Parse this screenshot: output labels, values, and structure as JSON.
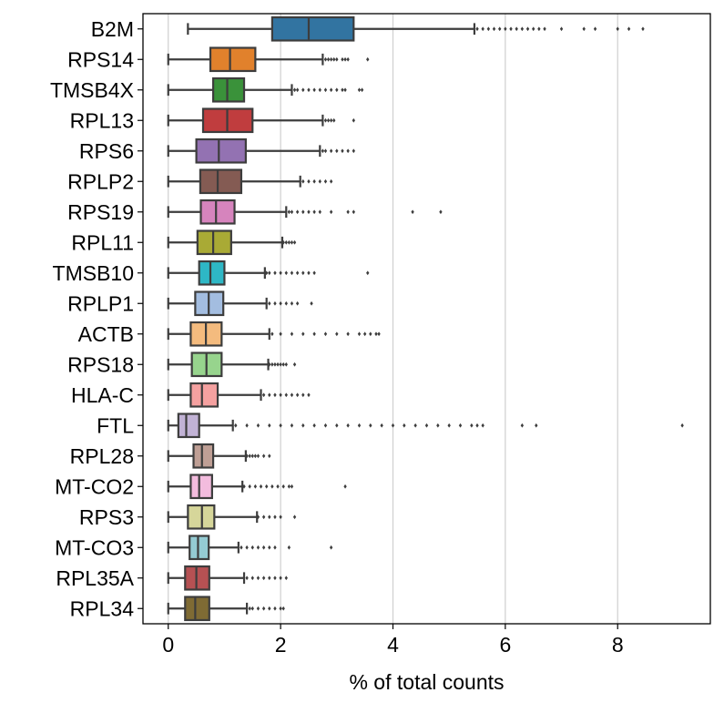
{
  "chart_data": {
    "type": "box",
    "title": "",
    "xlabel": "% of total counts",
    "ylabel": "",
    "xlim": [
      -0.45,
      9.65
    ],
    "xticks": [
      0,
      2,
      4,
      6,
      8
    ],
    "grid": "vertical",
    "orientation": "horizontal",
    "categories": [
      "B2M",
      "RPS14",
      "TMSB4X",
      "RPL13",
      "RPS6",
      "RPLP2",
      "RPS19",
      "RPL11",
      "TMSB10",
      "RPLP1",
      "ACTB",
      "RPS18",
      "HLA-C",
      "FTL",
      "RPL28",
      "MT-CO2",
      "RPS3",
      "MT-CO3",
      "RPL35A",
      "RPL34"
    ],
    "boxes": [
      {
        "name": "B2M",
        "color": "#3274a1",
        "whisker_low": 0.35,
        "q1": 1.85,
        "median": 2.5,
        "q3": 3.3,
        "whisker_high": 5.45,
        "outliers": [
          5.5,
          5.6,
          5.7,
          5.8,
          5.9,
          6.0,
          6.1,
          6.2,
          6.3,
          6.4,
          6.5,
          6.6,
          6.7,
          7.0,
          7.4,
          7.6,
          8.0,
          8.2,
          8.45
        ]
      },
      {
        "name": "RPS14",
        "color": "#e1812c",
        "whisker_low": 0.0,
        "q1": 0.75,
        "median": 1.1,
        "q3": 1.55,
        "whisker_high": 2.75,
        "outliers": [
          2.8,
          2.85,
          2.9,
          2.95,
          3.0,
          3.1,
          3.15,
          3.2,
          3.55
        ]
      },
      {
        "name": "TMSB4X",
        "color": "#3a923a",
        "whisker_low": 0.0,
        "q1": 0.8,
        "median": 1.05,
        "q3": 1.35,
        "whisker_high": 2.2,
        "outliers": [
          2.25,
          2.3,
          2.4,
          2.5,
          2.6,
          2.7,
          2.8,
          2.9,
          3.0,
          3.1,
          3.15,
          3.4,
          3.45
        ]
      },
      {
        "name": "RPL13",
        "color": "#c03d3e",
        "whisker_low": 0.0,
        "q1": 0.62,
        "median": 1.05,
        "q3": 1.5,
        "whisker_high": 2.75,
        "outliers": [
          2.8,
          2.85,
          2.9,
          2.95,
          3.3
        ]
      },
      {
        "name": "RPS6",
        "color": "#9372b2",
        "whisker_low": 0.0,
        "q1": 0.5,
        "median": 0.9,
        "q3": 1.38,
        "whisker_high": 2.7,
        "outliers": [
          2.75,
          2.8,
          2.9,
          3.0,
          3.1,
          3.2,
          3.3
        ]
      },
      {
        "name": "RPLP2",
        "color": "#845b53",
        "whisker_low": 0.0,
        "q1": 0.57,
        "median": 0.88,
        "q3": 1.3,
        "whisker_high": 2.35,
        "outliers": [
          2.4,
          2.5,
          2.6,
          2.7,
          2.8,
          2.9
        ]
      },
      {
        "name": "RPS19",
        "color": "#d684bd",
        "whisker_low": 0.0,
        "q1": 0.58,
        "median": 0.85,
        "q3": 1.18,
        "whisker_high": 2.1,
        "outliers": [
          2.15,
          2.2,
          2.3,
          2.4,
          2.5,
          2.6,
          2.7,
          2.9,
          3.2,
          3.3,
          4.35,
          4.85
        ]
      },
      {
        "name": "RPL11",
        "color": "#a9aa35",
        "whisker_low": 0.0,
        "q1": 0.52,
        "median": 0.8,
        "q3": 1.12,
        "whisker_high": 2.03,
        "outliers": [
          2.05,
          2.1,
          2.15,
          2.2,
          2.25
        ]
      },
      {
        "name": "TMSB10",
        "color": "#2eb7c5",
        "whisker_low": 0.0,
        "q1": 0.55,
        "median": 0.75,
        "q3": 1.0,
        "whisker_high": 1.72,
        "outliers": [
          1.75,
          1.8,
          1.9,
          2.0,
          2.1,
          2.2,
          2.3,
          2.4,
          2.5,
          2.6,
          3.55
        ]
      },
      {
        "name": "RPLP1",
        "color": "#a3bde0",
        "whisker_low": 0.0,
        "q1": 0.48,
        "median": 0.72,
        "q3": 0.98,
        "whisker_high": 1.75,
        "outliers": [
          1.8,
          1.9,
          2.0,
          2.1,
          2.2,
          2.3,
          2.55
        ]
      },
      {
        "name": "ACTB",
        "color": "#f4bb7e",
        "whisker_low": 0.0,
        "q1": 0.4,
        "median": 0.67,
        "q3": 0.95,
        "whisker_high": 1.8,
        "outliers": [
          1.85,
          2.0,
          2.2,
          2.4,
          2.6,
          2.8,
          3.0,
          3.2,
          3.4,
          3.5,
          3.6,
          3.7,
          3.75
        ]
      },
      {
        "name": "RPS18",
        "color": "#97d48d",
        "whisker_low": 0.0,
        "q1": 0.42,
        "median": 0.68,
        "q3": 0.95,
        "whisker_high": 1.78,
        "outliers": [
          1.8,
          1.85,
          1.9,
          1.95,
          2.0,
          2.05,
          2.1,
          2.25
        ]
      },
      {
        "name": "HLA-C",
        "color": "#f5a1a0",
        "whisker_low": 0.0,
        "q1": 0.4,
        "median": 0.6,
        "q3": 0.88,
        "whisker_high": 1.65,
        "outliers": [
          1.7,
          1.8,
          1.9,
          2.0,
          2.1,
          2.2,
          2.3,
          2.4,
          2.5
        ]
      },
      {
        "name": "FTL",
        "color": "#c1b2d5",
        "whisker_low": 0.0,
        "q1": 0.18,
        "median": 0.32,
        "q3": 0.55,
        "whisker_high": 1.15,
        "outliers": [
          1.2,
          1.4,
          1.6,
          1.8,
          2.0,
          2.2,
          2.4,
          2.6,
          2.8,
          3.0,
          3.2,
          3.4,
          3.6,
          3.8,
          4.0,
          4.2,
          4.4,
          4.6,
          4.8,
          5.0,
          5.2,
          5.4,
          5.5,
          5.6,
          6.3,
          6.55,
          9.15
        ]
      },
      {
        "name": "RPL28",
        "color": "#bf9f95",
        "whisker_low": 0.0,
        "q1": 0.45,
        "median": 0.6,
        "q3": 0.8,
        "whisker_high": 1.38,
        "outliers": [
          1.4,
          1.45,
          1.5,
          1.55,
          1.6,
          1.7,
          1.8
        ]
      },
      {
        "name": "MT-CO2",
        "color": "#f3bcde",
        "whisker_low": 0.0,
        "q1": 0.4,
        "median": 0.55,
        "q3": 0.78,
        "whisker_high": 1.32,
        "outliers": [
          1.35,
          1.45,
          1.55,
          1.65,
          1.75,
          1.85,
          1.95,
          2.05,
          2.15,
          2.2,
          3.15
        ]
      },
      {
        "name": "RPS3",
        "color": "#d6d69a",
        "whisker_low": 0.0,
        "q1": 0.35,
        "median": 0.6,
        "q3": 0.82,
        "whisker_high": 1.58,
        "outliers": [
          1.6,
          1.7,
          1.8,
          1.9,
          2.0,
          2.25
        ]
      },
      {
        "name": "MT-CO3",
        "color": "#94cbd3",
        "whisker_low": 0.0,
        "q1": 0.38,
        "median": 0.53,
        "q3": 0.72,
        "whisker_high": 1.25,
        "outliers": [
          1.3,
          1.4,
          1.5,
          1.6,
          1.7,
          1.8,
          1.9,
          2.15,
          2.9
        ]
      },
      {
        "name": "RPL35A",
        "color": "#b65153",
        "whisker_low": 0.0,
        "q1": 0.3,
        "median": 0.5,
        "q3": 0.73,
        "whisker_high": 1.35,
        "outliers": [
          1.4,
          1.5,
          1.6,
          1.7,
          1.8,
          1.9,
          2.0,
          2.1
        ]
      },
      {
        "name": "RPL34",
        "color": "#7f6b34",
        "whisker_low": 0.0,
        "q1": 0.3,
        "median": 0.48,
        "q3": 0.73,
        "whisker_high": 1.4,
        "outliers": [
          1.45,
          1.5,
          1.6,
          1.7,
          1.8,
          1.9,
          2.0,
          2.05
        ]
      }
    ]
  }
}
